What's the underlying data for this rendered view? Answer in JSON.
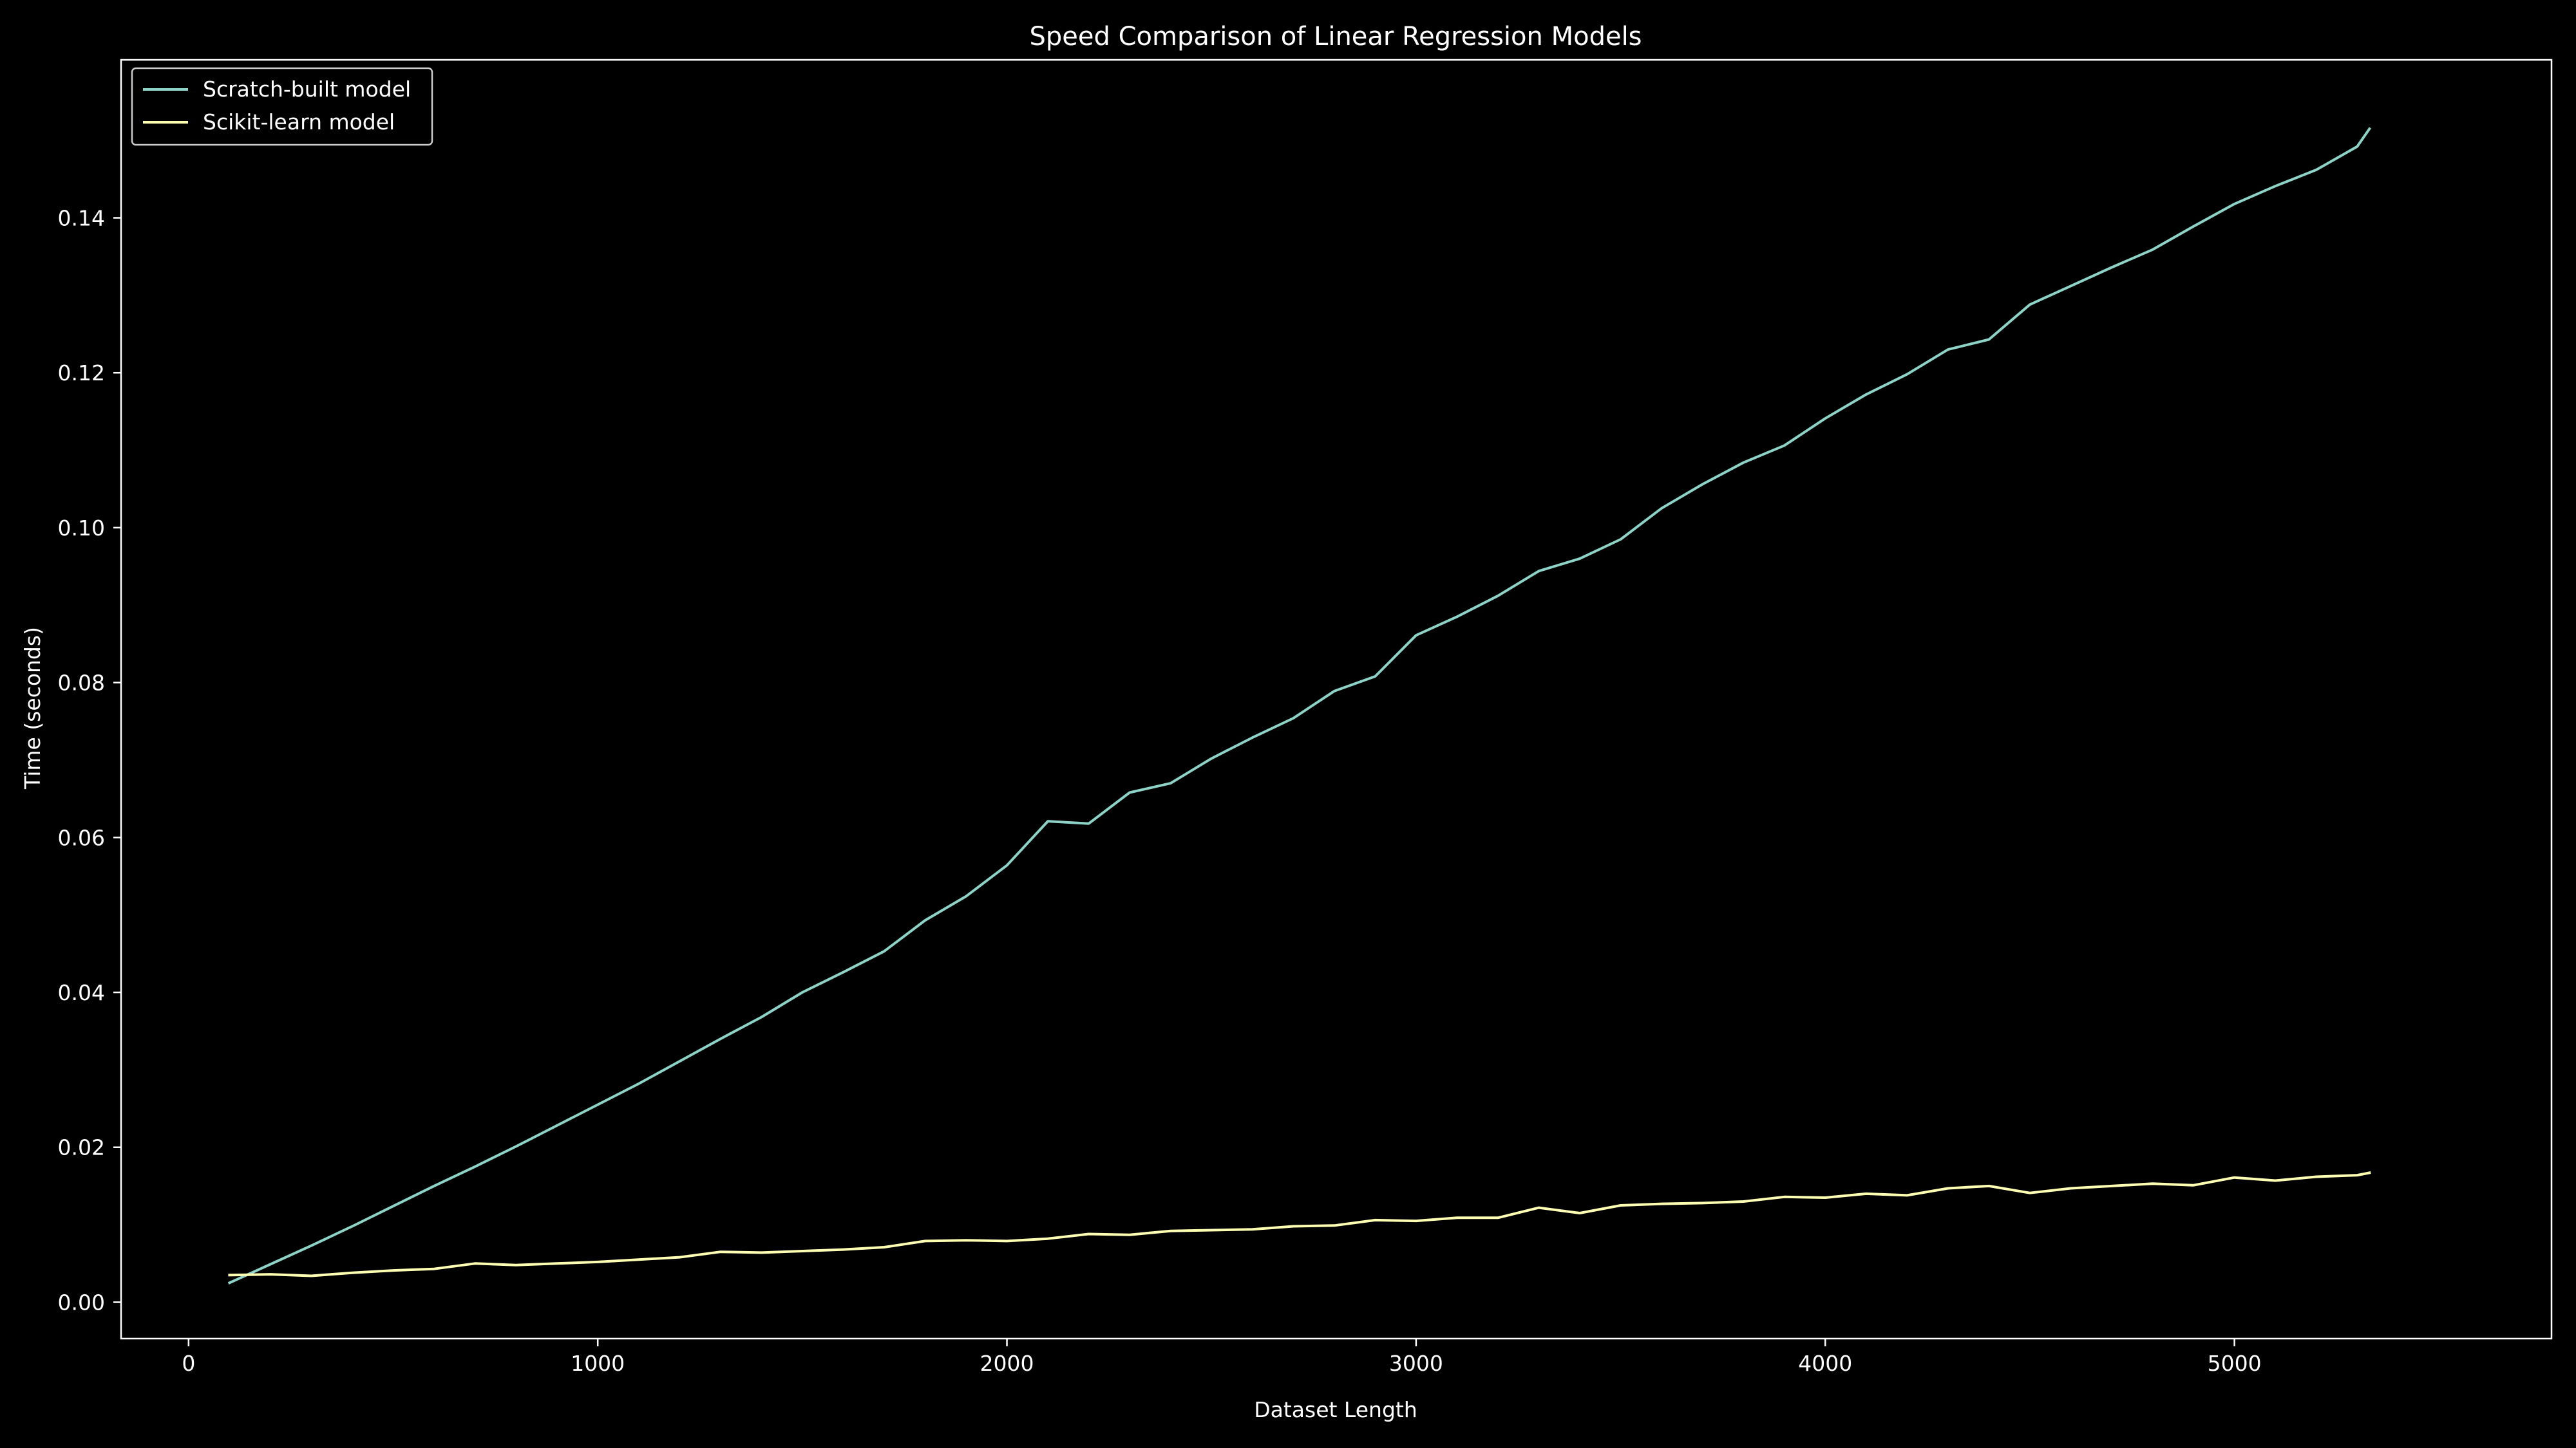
{
  "chart_data": {
    "type": "line",
    "title": "Speed Comparison of Linear Regression Models",
    "xlabel": "Dataset Length",
    "ylabel": "Time (seconds)",
    "xlim": [
      -165,
      5775
    ],
    "ylim": [
      -0.0047,
      0.1604
    ],
    "xticks": [
      0,
      1000,
      2000,
      3000,
      4000,
      5000
    ],
    "yticks": [
      0.0,
      0.02,
      0.04,
      0.06,
      0.08,
      0.1,
      0.12,
      0.14
    ],
    "ytick_decimals": 2,
    "grid": false,
    "legend": "top-left",
    "background": "#000000",
    "foreground": "#ffffff",
    "x": [
      100,
      200,
      300,
      400,
      500,
      600,
      700,
      800,
      900,
      1000,
      1100,
      1200,
      1300,
      1400,
      1500,
      1600,
      1700,
      1800,
      1900,
      2000,
      2100,
      2200,
      2300,
      2400,
      2500,
      2600,
      2700,
      2800,
      2900,
      3000,
      3100,
      3200,
      3300,
      3400,
      3500,
      3600,
      3700,
      3800,
      3900,
      4000,
      4100,
      4200,
      4300,
      4400,
      4500,
      4600,
      4700,
      4800,
      4900,
      5000,
      5100,
      5200,
      5300,
      5330
    ],
    "series": [
      {
        "name": "Scratch-built model",
        "color": "#8dd3c7",
        "values": [
          0.0025,
          0.0049,
          0.0073,
          0.0098,
          0.0124,
          0.015,
          0.0175,
          0.0201,
          0.0228,
          0.0255,
          0.0282,
          0.0311,
          0.034,
          0.0368,
          0.04,
          0.0426,
          0.0453,
          0.0493,
          0.0524,
          0.0564,
          0.0621,
          0.0618,
          0.0658,
          0.067,
          0.0702,
          0.0729,
          0.0754,
          0.0789,
          0.0808,
          0.0861,
          0.0885,
          0.0912,
          0.0944,
          0.096,
          0.0985,
          0.1025,
          0.1056,
          0.1084,
          0.1106,
          0.1141,
          0.1172,
          0.1198,
          0.123,
          0.1243,
          0.1288,
          0.1312,
          0.1336,
          0.1359,
          0.1389,
          0.1418,
          0.1441,
          0.1462,
          0.1492,
          0.1515
        ]
      },
      {
        "name": "Scikit-learn model",
        "color": "#feffb3",
        "values": [
          0.0035,
          0.0036,
          0.0034,
          0.0038,
          0.0041,
          0.0043,
          0.005,
          0.0048,
          0.005,
          0.0052,
          0.0055,
          0.0058,
          0.0065,
          0.0064,
          0.0066,
          0.0068,
          0.0071,
          0.0079,
          0.008,
          0.0079,
          0.0082,
          0.0088,
          0.0087,
          0.0092,
          0.0093,
          0.0094,
          0.0098,
          0.0099,
          0.0106,
          0.0105,
          0.0109,
          0.0109,
          0.0122,
          0.0115,
          0.0125,
          0.0127,
          0.0128,
          0.013,
          0.0136,
          0.0135,
          0.014,
          0.0138,
          0.0147,
          0.015,
          0.0141,
          0.0147,
          0.015,
          0.0153,
          0.0151,
          0.0161,
          0.0157,
          0.0162,
          0.0164,
          0.0167
        ]
      }
    ]
  }
}
